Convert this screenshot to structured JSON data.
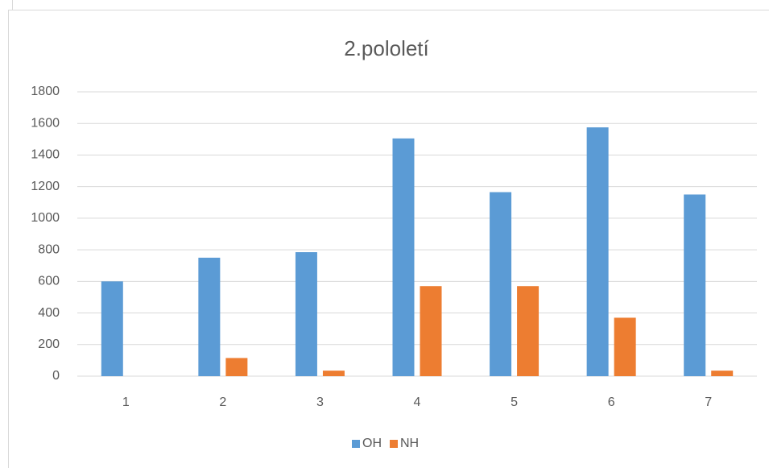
{
  "chart_data": {
    "type": "bar",
    "title": "2.pololetí",
    "categories": [
      "1",
      "2",
      "3",
      "4",
      "5",
      "6",
      "7"
    ],
    "series": [
      {
        "name": "OH",
        "color": "#5b9bd5",
        "values": [
          600,
          750,
          785,
          1505,
          1165,
          1575,
          1150
        ]
      },
      {
        "name": "NH",
        "color": "#ed7d31",
        "values": [
          0,
          115,
          35,
          570,
          570,
          370,
          35
        ]
      }
    ],
    "ylim": [
      0,
      1800
    ],
    "yticks": [
      0,
      200,
      400,
      600,
      800,
      1000,
      1200,
      1400,
      1600,
      1800
    ],
    "grid": true,
    "legend": "bottom"
  }
}
